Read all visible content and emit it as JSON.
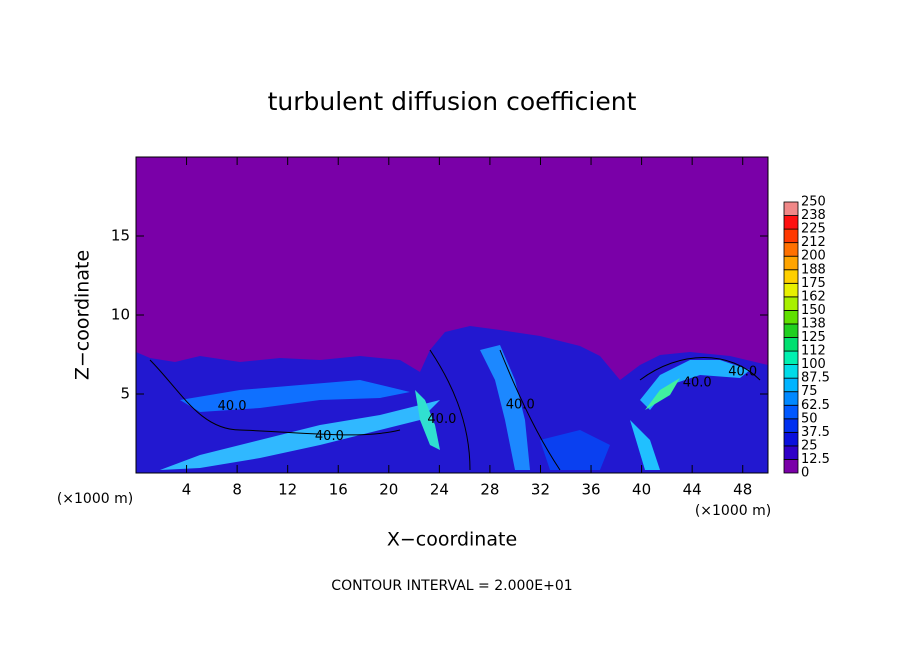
{
  "chart_data": {
    "type": "contour",
    "title": "turbulent diffusion coefficient",
    "x_label": "X−coordinate",
    "y_label": "Z−coordinate",
    "x_unit_left": "(×1000 m)",
    "x_unit_right": "(×1000 m)",
    "footer": "CONTOUR INTERVAL = 2.000E+01",
    "xlim": [
      0,
      50
    ],
    "ylim": [
      0,
      20
    ],
    "xticks": [
      4,
      8,
      12,
      16,
      20,
      24,
      28,
      32,
      36,
      40,
      44,
      48
    ],
    "yticks": [
      5,
      10,
      15
    ],
    "colorbar_levels": [
      0,
      12.5,
      25,
      37.5,
      50,
      62.5,
      75,
      87.5,
      100,
      112,
      125,
      138,
      150,
      162,
      175,
      188,
      200,
      212,
      225,
      238,
      250
    ],
    "colorbar_colors": [
      "#7a00a8",
      "#3000c8",
      "#0a10dc",
      "#0030f0",
      "#0058ff",
      "#0088ff",
      "#00b4ff",
      "#00dce8",
      "#00f0b0",
      "#00e070",
      "#20d020",
      "#60e000",
      "#a8f000",
      "#e8f000",
      "#ffd000",
      "#ffa400",
      "#ff7000",
      "#ff3800",
      "#ff1010",
      "#f08888"
    ],
    "annotations": [
      {
        "text": "40.0",
        "x": 7.6,
        "y": 4.2
      },
      {
        "text": "40.0",
        "x": 15.3,
        "y": 2.3
      },
      {
        "text": "40.0",
        "x": 24.2,
        "y": 3.4
      },
      {
        "text": "40.0",
        "x": 30.4,
        "y": 4.3
      },
      {
        "text": "40.0",
        "x": 44.4,
        "y": 5.7
      },
      {
        "text": "40.0",
        "x": 48.0,
        "y": 6.4
      }
    ]
  }
}
